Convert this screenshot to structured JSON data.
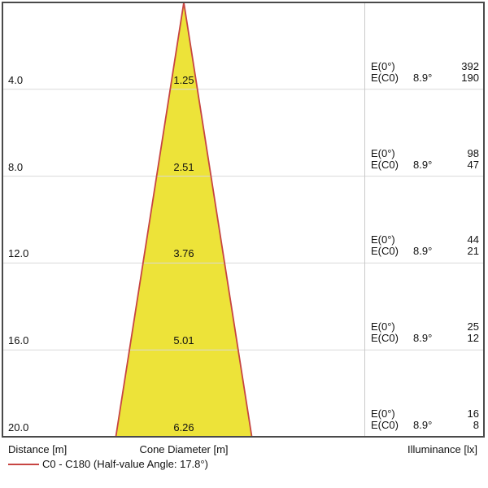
{
  "colors": {
    "background": "#FFFFFF",
    "cone_fill": "#EDE339",
    "cone_stroke": "#C74542",
    "frame": "#4A4A4A",
    "grid": "#D9D9D9",
    "divider": "#C9C9C9",
    "text": "#111111"
  },
  "chart_data": {
    "type": "area",
    "description": "Light cone diagram: beam cone diameter and illuminance versus distance",
    "columns": {
      "distance": "Distance [m]",
      "cone_diameter": "Cone Diameter [m]",
      "illuminance": "Illuminance [lx]"
    },
    "row_labels": {
      "e0": "E(0°)",
      "ec0": "E(C0)"
    },
    "half_value_angle_deg": 8.9,
    "rows": [
      {
        "distance": "4.0",
        "cone_diameter": "1.25",
        "angle": "8.9°",
        "e0": "392",
        "ec0": "190"
      },
      {
        "distance": "8.0",
        "cone_diameter": "2.51",
        "angle": "8.9°",
        "e0": "98",
        "ec0": "47"
      },
      {
        "distance": "12.0",
        "cone_diameter": "3.76",
        "angle": "8.9°",
        "e0": "44",
        "ec0": "21"
      },
      {
        "distance": "16.0",
        "cone_diameter": "5.01",
        "angle": "8.9°",
        "e0": "25",
        "ec0": "12"
      },
      {
        "distance": "20.0",
        "cone_diameter": "6.26",
        "angle": "8.9°",
        "e0": "16",
        "ec0": "8"
      }
    ],
    "x_range_m": [
      0,
      20
    ],
    "legend": {
      "label": "C0 - C180 (Half-value Angle: 17.8°)"
    }
  }
}
